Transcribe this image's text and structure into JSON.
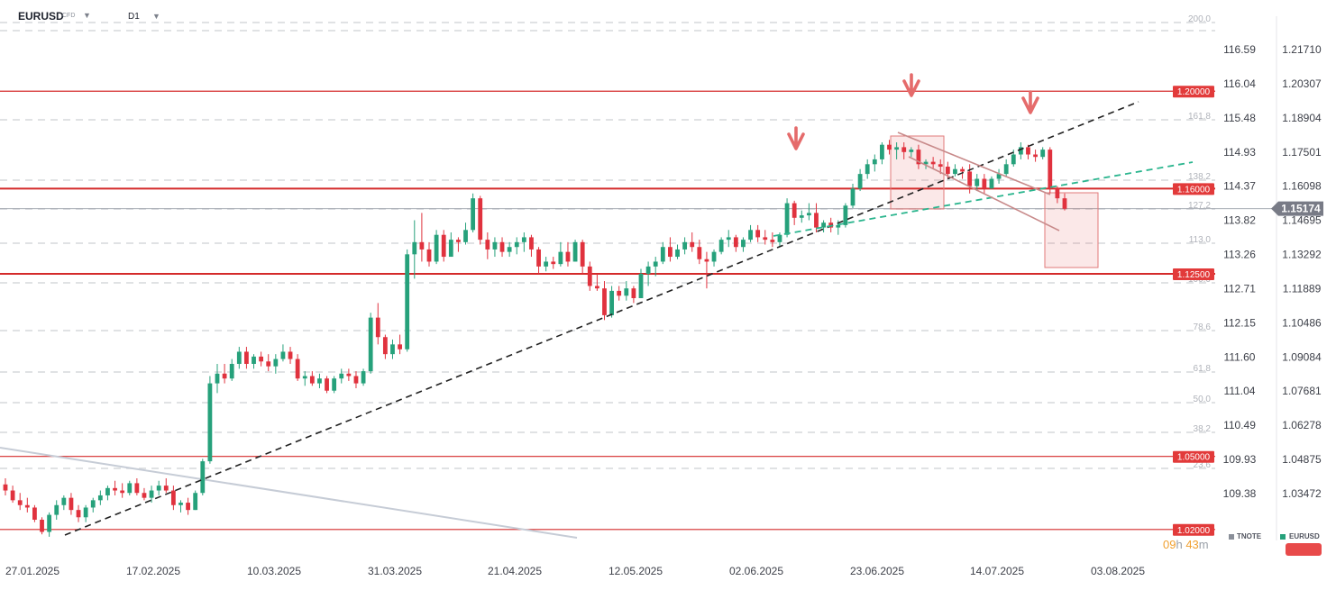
{
  "header": {
    "symbol": "EURUSD",
    "symbol_tag": "CFD",
    "timeframe": "D1"
  },
  "chart_data": {
    "type": "candlestick",
    "x_dates": [
      "27.01.2025",
      "17.02.2025",
      "10.03.2025",
      "31.03.2025",
      "21.04.2025",
      "12.05.2025",
      "02.06.2025",
      "23.06.2025",
      "14.07.2025",
      "03.08.2025"
    ],
    "right_axis_eurusd": [
      "1.21710",
      "1.20307",
      "1.18904",
      "1.17501",
      "1.16098",
      "1.14695",
      "1.13292",
      "1.11889",
      "1.10486",
      "1.09084",
      "1.07681",
      "1.06278",
      "1.04875",
      "1.03472"
    ],
    "left_axis_tnote": [
      "116.59",
      "116.04",
      "115.48",
      "114.93",
      "114.37",
      "113.82",
      "113.26",
      "112.71",
      "112.15",
      "111.60",
      "111.04",
      "110.49",
      "109.93",
      "109.38"
    ],
    "current_price": "1.15174",
    "horizontal_levels": [
      "1.20000",
      "1.16000",
      "1.12500",
      "1.05000",
      "1.02000"
    ],
    "fibonacci_levels": [
      "200.0",
      "161.8",
      "138.2",
      "127.2",
      "113.0",
      "100.0",
      "78.6",
      "61.8",
      "50.0",
      "38.2",
      "23.6"
    ],
    "legend": [
      "TNOTE",
      "EURUSD"
    ],
    "colors": {
      "up": "#26a17b",
      "down": "#e0323e",
      "level_line": "#d42a2a",
      "trend_black": "#222222",
      "trend_green": "#2bb58e",
      "channel": "#c88a8a",
      "overlay_line": "#c6ccd6",
      "label_bg": "#e23a3a",
      "price_tag_bg": "#787b86",
      "fib_text": "#b0b3ba",
      "timer": "#f0a030"
    },
    "annotations": [
      "3 down arrows marking resistance tests",
      "descending channel",
      "ascending dashed trendlines"
    ],
    "candles": [
      [
        1.0385,
        1.041,
        1.034,
        1.036
      ],
      [
        1.036,
        1.038,
        1.031,
        1.032
      ],
      [
        1.032,
        1.035,
        1.028,
        1.03
      ],
      [
        1.03,
        1.033,
        1.027,
        1.029
      ],
      [
        1.029,
        1.03,
        1.023,
        1.024
      ],
      [
        1.024,
        1.025,
        1.018,
        1.019
      ],
      [
        1.019,
        1.027,
        1.017,
        1.026
      ],
      [
        1.026,
        1.032,
        1.024,
        1.03
      ],
      [
        1.03,
        1.034,
        1.028,
        1.033
      ],
      [
        1.033,
        1.035,
        1.026,
        1.028
      ],
      [
        1.028,
        1.03,
        1.023,
        1.025
      ],
      [
        1.025,
        1.03,
        1.023,
        1.029
      ],
      [
        1.029,
        1.033,
        1.027,
        1.032
      ],
      [
        1.032,
        1.036,
        1.03,
        1.034
      ],
      [
        1.034,
        1.038,
        1.032,
        1.037
      ],
      [
        1.037,
        1.04,
        1.034,
        1.036
      ],
      [
        1.036,
        1.039,
        1.033,
        1.035
      ],
      [
        1.035,
        1.04,
        1.034,
        1.039
      ],
      [
        1.039,
        1.041,
        1.034,
        1.035
      ],
      [
        1.035,
        1.037,
        1.032,
        1.033
      ],
      [
        1.033,
        1.038,
        1.031,
        1.036
      ],
      [
        1.036,
        1.04,
        1.034,
        1.038
      ],
      [
        1.038,
        1.041,
        1.035,
        1.036
      ],
      [
        1.036,
        1.038,
        1.028,
        1.03
      ],
      [
        1.03,
        1.032,
        1.027,
        1.031
      ],
      [
        1.031,
        1.033,
        1.026,
        1.028
      ],
      [
        1.028,
        1.036,
        1.028,
        1.035
      ],
      [
        1.035,
        1.049,
        1.034,
        1.048
      ],
      [
        1.048,
        1.083,
        1.047,
        1.08
      ],
      [
        1.08,
        1.088,
        1.076,
        1.084
      ],
      [
        1.084,
        1.088,
        1.08,
        1.082
      ],
      [
        1.082,
        1.09,
        1.081,
        1.088
      ],
      [
        1.088,
        1.095,
        1.086,
        1.093
      ],
      [
        1.093,
        1.095,
        1.086,
        1.088
      ],
      [
        1.088,
        1.092,
        1.086,
        1.091
      ],
      [
        1.091,
        1.093,
        1.087,
        1.089
      ],
      [
        1.089,
        1.092,
        1.085,
        1.087
      ],
      [
        1.087,
        1.092,
        1.084,
        1.09
      ],
      [
        1.09,
        1.096,
        1.089,
        1.093
      ],
      [
        1.093,
        1.095,
        1.088,
        1.09
      ],
      [
        1.09,
        1.092,
        1.081,
        1.082
      ],
      [
        1.082,
        1.085,
        1.079,
        1.083
      ],
      [
        1.083,
        1.085,
        1.079,
        1.08
      ],
      [
        1.08,
        1.084,
        1.078,
        1.082
      ],
      [
        1.082,
        1.083,
        1.076,
        1.077
      ],
      [
        1.077,
        1.083,
        1.076,
        1.082
      ],
      [
        1.082,
        1.086,
        1.08,
        1.084
      ],
      [
        1.084,
        1.086,
        1.081,
        1.083
      ],
      [
        1.083,
        1.085,
        1.078,
        1.08
      ],
      [
        1.08,
        1.086,
        1.079,
        1.085
      ],
      [
        1.085,
        1.109,
        1.084,
        1.107
      ],
      [
        1.107,
        1.113,
        1.096,
        1.099
      ],
      [
        1.099,
        1.1,
        1.09,
        1.092
      ],
      [
        1.092,
        1.098,
        1.09,
        1.096
      ],
      [
        1.096,
        1.1,
        1.092,
        1.094
      ],
      [
        1.094,
        1.135,
        1.093,
        1.133
      ],
      [
        1.133,
        1.147,
        1.123,
        1.138
      ],
      [
        1.138,
        1.15,
        1.13,
        1.135
      ],
      [
        1.135,
        1.138,
        1.128,
        1.13
      ],
      [
        1.13,
        1.143,
        1.129,
        1.141
      ],
      [
        1.141,
        1.143,
        1.13,
        1.132
      ],
      [
        1.132,
        1.142,
        1.132,
        1.139
      ],
      [
        1.139,
        1.14,
        1.134,
        1.138
      ],
      [
        1.138,
        1.146,
        1.137,
        1.143
      ],
      [
        1.143,
        1.158,
        1.142,
        1.156
      ],
      [
        1.156,
        1.157,
        1.137,
        1.139
      ],
      [
        1.139,
        1.142,
        1.131,
        1.135
      ],
      [
        1.135,
        1.14,
        1.132,
        1.138
      ],
      [
        1.138,
        1.14,
        1.132,
        1.134
      ],
      [
        1.134,
        1.138,
        1.132,
        1.136
      ],
      [
        1.136,
        1.14,
        1.133,
        1.138
      ],
      [
        1.138,
        1.142,
        1.134,
        1.14
      ],
      [
        1.14,
        1.141,
        1.132,
        1.135
      ],
      [
        1.135,
        1.136,
        1.125,
        1.128
      ],
      [
        1.128,
        1.132,
        1.126,
        1.13
      ],
      [
        1.13,
        1.132,
        1.127,
        1.129
      ],
      [
        1.129,
        1.138,
        1.128,
        1.134
      ],
      [
        1.134,
        1.138,
        1.128,
        1.13
      ],
      [
        1.13,
        1.139,
        1.13,
        1.138
      ],
      [
        1.138,
        1.139,
        1.125,
        1.128
      ],
      [
        1.128,
        1.13,
        1.118,
        1.12
      ],
      [
        1.12,
        1.125,
        1.118,
        1.119
      ],
      [
        1.119,
        1.122,
        1.106,
        1.108
      ],
      [
        1.108,
        1.12,
        1.107,
        1.118
      ],
      [
        1.118,
        1.12,
        1.114,
        1.116
      ],
      [
        1.116,
        1.122,
        1.114,
        1.119
      ],
      [
        1.119,
        1.12,
        1.113,
        1.115
      ],
      [
        1.115,
        1.127,
        1.115,
        1.125
      ],
      [
        1.125,
        1.13,
        1.12,
        1.128
      ],
      [
        1.128,
        1.132,
        1.124,
        1.13
      ],
      [
        1.13,
        1.138,
        1.129,
        1.136
      ],
      [
        1.136,
        1.14,
        1.13,
        1.132
      ],
      [
        1.132,
        1.137,
        1.131,
        1.135
      ],
      [
        1.135,
        1.14,
        1.133,
        1.138
      ],
      [
        1.138,
        1.142,
        1.134,
        1.136
      ],
      [
        1.136,
        1.139,
        1.129,
        1.131
      ],
      [
        1.131,
        1.134,
        1.119,
        1.13
      ],
      [
        1.13,
        1.135,
        1.128,
        1.134
      ],
      [
        1.134,
        1.14,
        1.133,
        1.139
      ],
      [
        1.139,
        1.143,
        1.136,
        1.14
      ],
      [
        1.14,
        1.141,
        1.134,
        1.136
      ],
      [
        1.136,
        1.14,
        1.134,
        1.139
      ],
      [
        1.139,
        1.145,
        1.138,
        1.143
      ],
      [
        1.143,
        1.145,
        1.138,
        1.14
      ],
      [
        1.14,
        1.143,
        1.137,
        1.139
      ],
      [
        1.139,
        1.142,
        1.136,
        1.138
      ],
      [
        1.138,
        1.142,
        1.136,
        1.141
      ],
      [
        1.141,
        1.156,
        1.14,
        1.154
      ],
      [
        1.154,
        1.155,
        1.145,
        1.148
      ],
      [
        1.148,
        1.151,
        1.146,
        1.149
      ],
      [
        1.149,
        1.154,
        1.147,
        1.15
      ],
      [
        1.15,
        1.154,
        1.142,
        1.144
      ],
      [
        1.144,
        1.147,
        1.142,
        1.146
      ],
      [
        1.146,
        1.148,
        1.142,
        1.144
      ],
      [
        1.144,
        1.147,
        1.141,
        1.145
      ],
      [
        1.145,
        1.154,
        1.144,
        1.153
      ],
      [
        1.153,
        1.162,
        1.152,
        1.16
      ],
      [
        1.16,
        1.168,
        1.159,
        1.166
      ],
      [
        1.166,
        1.172,
        1.164,
        1.17
      ],
      [
        1.17,
        1.174,
        1.167,
        1.172
      ],
      [
        1.172,
        1.179,
        1.17,
        1.178
      ],
      [
        1.178,
        1.18,
        1.174,
        1.176
      ],
      [
        1.176,
        1.179,
        1.172,
        1.177
      ],
      [
        1.177,
        1.179,
        1.172,
        1.175
      ],
      [
        1.175,
        1.177,
        1.173,
        1.176
      ],
      [
        1.176,
        1.178,
        1.168,
        1.17
      ],
      [
        1.17,
        1.172,
        1.168,
        1.171
      ],
      [
        1.171,
        1.173,
        1.168,
        1.17
      ],
      [
        1.17,
        1.172,
        1.166,
        1.169
      ],
      [
        1.169,
        1.171,
        1.164,
        1.166
      ],
      [
        1.166,
        1.17,
        1.165,
        1.168
      ],
      [
        1.168,
        1.169,
        1.164,
        1.167
      ],
      [
        1.167,
        1.17,
        1.158,
        1.161
      ],
      [
        1.161,
        1.166,
        1.159,
        1.164
      ],
      [
        1.164,
        1.166,
        1.158,
        1.16
      ],
      [
        1.16,
        1.165,
        1.16,
        1.164
      ],
      [
        1.164,
        1.168,
        1.162,
        1.166
      ],
      [
        1.166,
        1.172,
        1.165,
        1.17
      ],
      [
        1.17,
        1.176,
        1.169,
        1.174
      ],
      [
        1.174,
        1.179,
        1.172,
        1.177
      ],
      [
        1.177,
        1.178,
        1.172,
        1.174
      ],
      [
        1.174,
        1.176,
        1.171,
        1.173
      ],
      [
        1.173,
        1.177,
        1.172,
        1.176
      ],
      [
        1.176,
        1.177,
        1.158,
        1.16
      ],
      [
        1.16,
        1.161,
        1.154,
        1.156
      ],
      [
        1.156,
        1.158,
        1.151,
        1.1517
      ]
    ]
  }
}
